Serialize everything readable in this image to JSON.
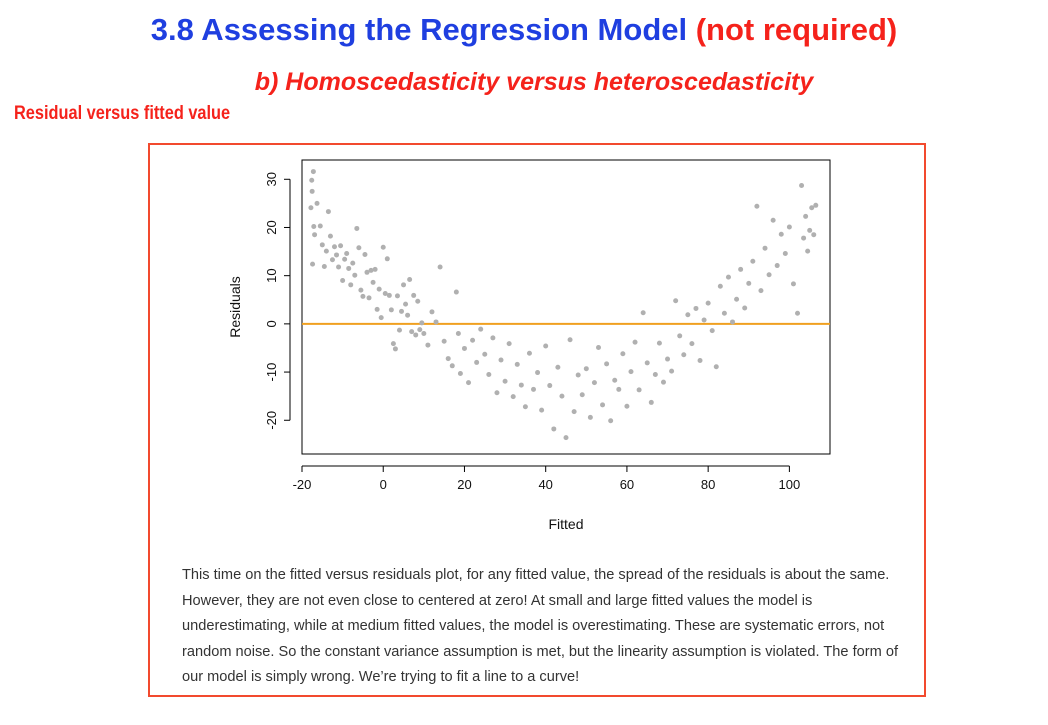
{
  "header": {
    "title_main": "3.8 Assessing the Regression Model",
    "title_note": "(not required)",
    "subtitle": "b) Homoscedasticity versus heteroscedasticity",
    "section_label": "Residual versus fitted value"
  },
  "colors": {
    "title_blue": "#1f3fe0",
    "accent_red": "#f5221b",
    "point_gray": "#b0b0b0",
    "reference_line": "#f0a020"
  },
  "chart_data": {
    "type": "scatter",
    "xlabel": "Fitted",
    "ylabel": "Residuals",
    "xlim": [
      -20,
      110
    ],
    "ylim": [
      -27,
      34
    ],
    "xticks": [
      -20,
      0,
      20,
      40,
      60,
      80,
      100
    ],
    "yticks": [
      -20,
      -10,
      0,
      10,
      20,
      30
    ],
    "hline": 0,
    "grid": false,
    "points": [
      [
        -17.6,
        29.8
      ],
      [
        -17.2,
        31.6
      ],
      [
        -17.5,
        27.5
      ],
      [
        -17.8,
        24.1
      ],
      [
        -17.1,
        20.2
      ],
      [
        -16.9,
        18.5
      ],
      [
        -17.4,
        12.4
      ],
      [
        -16.3,
        25.0
      ],
      [
        -15.5,
        20.3
      ],
      [
        -15.0,
        16.4
      ],
      [
        -14.5,
        11.9
      ],
      [
        -14.0,
        15.1
      ],
      [
        -13.5,
        23.3
      ],
      [
        -13.0,
        18.2
      ],
      [
        -12.5,
        13.3
      ],
      [
        -12.0,
        16.0
      ],
      [
        -11.5,
        14.3
      ],
      [
        -11.0,
        11.8
      ],
      [
        -10.5,
        16.2
      ],
      [
        -10.0,
        9.0
      ],
      [
        -9.5,
        13.4
      ],
      [
        -9.0,
        14.6
      ],
      [
        -8.5,
        11.5
      ],
      [
        -8.0,
        8.1
      ],
      [
        -7.5,
        12.6
      ],
      [
        -7.0,
        10.1
      ],
      [
        -6.5,
        19.8
      ],
      [
        -6.0,
        15.8
      ],
      [
        -5.5,
        7.0
      ],
      [
        -5.0,
        5.7
      ],
      [
        -4.5,
        14.4
      ],
      [
        -4.0,
        10.7
      ],
      [
        -3.5,
        5.4
      ],
      [
        -3.0,
        11.1
      ],
      [
        -2.5,
        8.6
      ],
      [
        -2.0,
        11.3
      ],
      [
        -1.5,
        3.0
      ],
      [
        -1.0,
        7.2
      ],
      [
        -0.5,
        1.3
      ],
      [
        0.0,
        15.9
      ],
      [
        0.5,
        6.3
      ],
      [
        1.0,
        13.5
      ],
      [
        1.5,
        5.9
      ],
      [
        2.0,
        2.9
      ],
      [
        2.5,
        -4.1
      ],
      [
        3.0,
        -5.2
      ],
      [
        3.5,
        5.8
      ],
      [
        4.0,
        -1.3
      ],
      [
        4.5,
        2.6
      ],
      [
        5.0,
        8.1
      ],
      [
        5.5,
        4.1
      ],
      [
        6.0,
        1.8
      ],
      [
        6.5,
        9.2
      ],
      [
        7.0,
        -1.6
      ],
      [
        7.5,
        5.9
      ],
      [
        8.0,
        -2.3
      ],
      [
        8.5,
        4.7
      ],
      [
        9.0,
        -1.2
      ],
      [
        9.5,
        0.2
      ],
      [
        10.0,
        -2.0
      ],
      [
        11.0,
        -4.4
      ],
      [
        12.0,
        2.5
      ],
      [
        13.0,
        0.4
      ],
      [
        14.0,
        11.8
      ],
      [
        15.0,
        -3.6
      ],
      [
        16.0,
        -7.2
      ],
      [
        17.0,
        -8.7
      ],
      [
        18.0,
        6.6
      ],
      [
        18.5,
        -2.0
      ],
      [
        19.0,
        -10.3
      ],
      [
        20.0,
        -5.1
      ],
      [
        21.0,
        -12.2
      ],
      [
        22.0,
        -3.4
      ],
      [
        23.0,
        -8.0
      ],
      [
        24.0,
        -1.1
      ],
      [
        25.0,
        -6.3
      ],
      [
        26.0,
        -10.5
      ],
      [
        27.0,
        -2.9
      ],
      [
        28.0,
        -14.3
      ],
      [
        29.0,
        -7.5
      ],
      [
        30.0,
        -11.9
      ],
      [
        31.0,
        -4.1
      ],
      [
        32.0,
        -15.1
      ],
      [
        33.0,
        -8.4
      ],
      [
        34.0,
        -12.7
      ],
      [
        35.0,
        -17.2
      ],
      [
        36.0,
        -6.1
      ],
      [
        37.0,
        -13.6
      ],
      [
        38.0,
        -10.1
      ],
      [
        39.0,
        -17.9
      ],
      [
        40.0,
        -4.6
      ],
      [
        41.0,
        -12.8
      ],
      [
        42.0,
        -21.8
      ],
      [
        43.0,
        -9.0
      ],
      [
        44.0,
        -15.0
      ],
      [
        45.0,
        -23.6
      ],
      [
        46.0,
        -3.3
      ],
      [
        47.0,
        -18.2
      ],
      [
        48.0,
        -10.6
      ],
      [
        49.0,
        -14.7
      ],
      [
        50.0,
        -9.3
      ],
      [
        51.0,
        -19.4
      ],
      [
        52.0,
        -12.2
      ],
      [
        53.0,
        -4.9
      ],
      [
        54.0,
        -16.8
      ],
      [
        55.0,
        -8.3
      ],
      [
        56.0,
        -20.1
      ],
      [
        57.0,
        -11.7
      ],
      [
        58.0,
        -13.6
      ],
      [
        59.0,
        -6.2
      ],
      [
        60.0,
        -17.1
      ],
      [
        61.0,
        -9.9
      ],
      [
        62.0,
        -3.8
      ],
      [
        63.0,
        -13.7
      ],
      [
        64.0,
        2.3
      ],
      [
        65.0,
        -8.1
      ],
      [
        66.0,
        -16.3
      ],
      [
        67.0,
        -10.5
      ],
      [
        68.0,
        -4.0
      ],
      [
        69.0,
        -12.1
      ],
      [
        70.0,
        -7.3
      ],
      [
        71.0,
        -9.8
      ],
      [
        72.0,
        4.8
      ],
      [
        73.0,
        -2.5
      ],
      [
        74.0,
        -6.4
      ],
      [
        75.0,
        1.9
      ],
      [
        76.0,
        -4.1
      ],
      [
        77.0,
        3.2
      ],
      [
        78.0,
        -7.6
      ],
      [
        79.0,
        0.8
      ],
      [
        80.0,
        4.3
      ],
      [
        81.0,
        -1.4
      ],
      [
        82.0,
        -8.9
      ],
      [
        83.0,
        7.8
      ],
      [
        84.0,
        2.2
      ],
      [
        85.0,
        9.7
      ],
      [
        86.0,
        0.4
      ],
      [
        87.0,
        5.1
      ],
      [
        88.0,
        11.3
      ],
      [
        89.0,
        3.3
      ],
      [
        90.0,
        8.4
      ],
      [
        91.0,
        13.0
      ],
      [
        92.0,
        24.4
      ],
      [
        93.0,
        6.9
      ],
      [
        94.0,
        15.7
      ],
      [
        95.0,
        10.2
      ],
      [
        96.0,
        21.5
      ],
      [
        97.0,
        12.1
      ],
      [
        98.0,
        18.6
      ],
      [
        99.0,
        14.6
      ],
      [
        100.0,
        20.1
      ],
      [
        101.0,
        8.3
      ],
      [
        102.0,
        2.2
      ],
      [
        103.0,
        28.7
      ],
      [
        103.5,
        17.8
      ],
      [
        104.0,
        22.3
      ],
      [
        104.5,
        15.1
      ],
      [
        105.0,
        19.4
      ],
      [
        105.5,
        24.1
      ],
      [
        106.0,
        18.5
      ],
      [
        106.5,
        24.6
      ]
    ]
  },
  "description": "This time on the fitted versus residuals plot, for any fitted value, the spread of the residuals is about the same. However, they are not even close to centered at zero! At small and large fitted values the model is underestimating, while at medium fitted values, the model is overestimating. These are systematic errors, not random noise. So the constant variance assumption is met, but the linearity assumption is violated. The form of our model is simply wrong. We’re trying to fit a line to a curve!"
}
